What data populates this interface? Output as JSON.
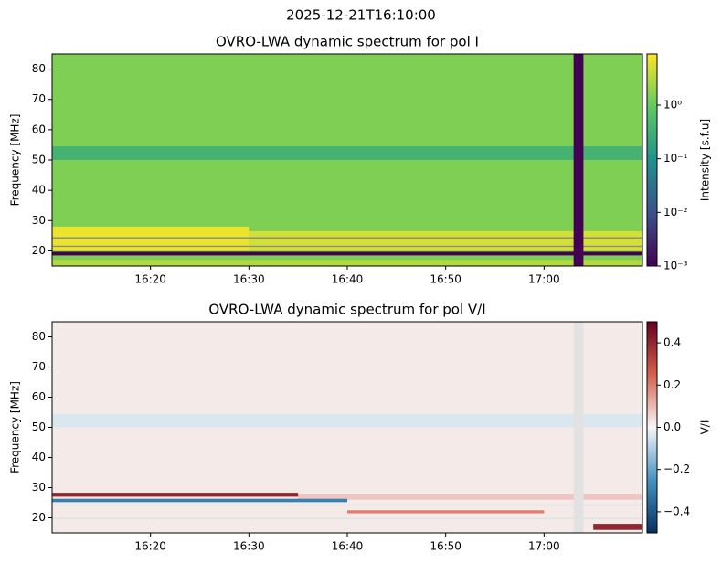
{
  "title": "2025-12-21T16:10:00",
  "chart_data": [
    {
      "type": "heatmap",
      "title": "OVRO-LWA dynamic spectrum for pol I",
      "y_label": "Frequency [MHz]",
      "colorbar_label": "Intensity [s.f.u]",
      "colormap": "viridis",
      "color_scale": "log",
      "nan_color": "#8c8c8c",
      "xlim": [
        "16:10",
        "17:10"
      ],
      "xticks": [
        "16:20",
        "16:30",
        "16:40",
        "16:50",
        "17:00"
      ],
      "ylim": [
        15,
        85
      ],
      "yticks": [
        20,
        30,
        40,
        50,
        60,
        70,
        80
      ],
      "clim": [
        0.001,
        9
      ],
      "cticks": [
        {
          "value": 0.001,
          "label": "10⁻³"
        },
        {
          "value": 0.01,
          "label": "10⁻²"
        },
        {
          "value": 0.1,
          "label": "10⁻¹"
        },
        {
          "value": 1,
          "label": "10⁰"
        }
      ],
      "background": 1.5,
      "bands": [
        {
          "freq": [
            50,
            54.5
          ],
          "value": 0.37
        },
        {
          "freq": [
            15,
            17
          ],
          "value": 3
        },
        {
          "freq": [
            20,
            28
          ],
          "time": [
            "16:10",
            "16:30"
          ],
          "value": 7
        },
        {
          "freq": [
            20,
            26.5
          ],
          "time": [
            "16:30",
            "17:10"
          ],
          "value": 5
        },
        {
          "freq": [
            18.5,
            19.7
          ],
          "value": 0.001
        },
        {
          "freq": [
            24,
            24.5
          ],
          "value": null
        },
        {
          "freq": [
            21.3,
            21.7
          ],
          "value": null
        },
        {
          "time": [
            "17:03",
            "17:04"
          ],
          "value": 0.001
        }
      ]
    },
    {
      "type": "heatmap",
      "title": "OVRO-LWA dynamic spectrum for pol V/I",
      "y_label": "Frequency [MHz]",
      "colorbar_label": "V/I",
      "colormap": "RdBu_r",
      "color_scale": "linear",
      "nan_color": "#e2e2e2",
      "xlim": [
        "16:10",
        "17:10"
      ],
      "xticks": [
        "16:20",
        "16:30",
        "16:40",
        "16:50",
        "17:00"
      ],
      "ylim": [
        15,
        85
      ],
      "yticks": [
        20,
        30,
        40,
        50,
        60,
        70,
        80
      ],
      "clim": [
        -0.5,
        0.5
      ],
      "cticks": [
        {
          "value": -0.4,
          "label": "−0.4"
        },
        {
          "value": -0.2,
          "label": "−0.2"
        },
        {
          "value": 0,
          "label": "0.0"
        },
        0.2,
        0.4
      ],
      "background": 0.02,
      "bands": [
        {
          "freq": [
            50,
            54.5
          ],
          "value": -0.04
        },
        {
          "freq": [
            26,
            28
          ],
          "time": [
            "16:35",
            "17:10"
          ],
          "value": 0.08
        },
        {
          "freq": [
            27,
            28.3
          ],
          "time": [
            "16:10",
            "16:35"
          ],
          "value": 0.4
        },
        {
          "freq": [
            25.2,
            26.3
          ],
          "time": [
            "16:10",
            "16:40"
          ],
          "value": -0.3
        },
        {
          "freq": [
            21.5,
            22.5
          ],
          "time": [
            "16:40",
            "17:00"
          ],
          "value": 0.2
        },
        {
          "freq": [
            16,
            18
          ],
          "time": [
            "17:05",
            "17:10"
          ],
          "value": 0.4
        },
        {
          "freq": [
            19.5,
            20
          ],
          "value": null
        },
        {
          "freq": [
            24,
            24.5
          ],
          "value": null
        },
        {
          "time": [
            "17:03",
            "17:04"
          ],
          "value": null
        }
      ]
    }
  ]
}
